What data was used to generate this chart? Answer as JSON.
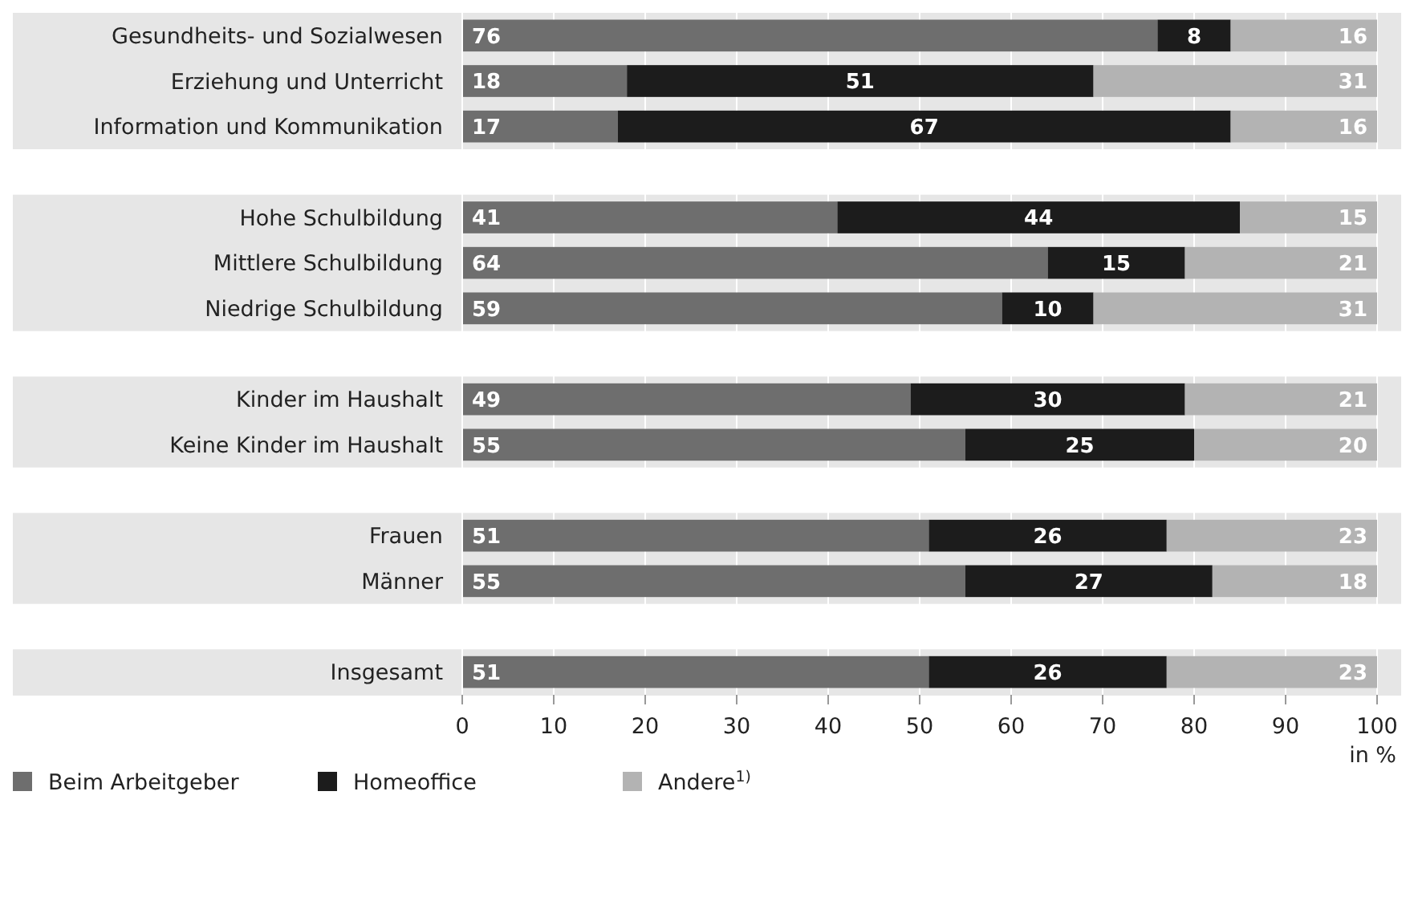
{
  "chart_data": {
    "type": "bar",
    "orientation": "horizontal",
    "stacked": true,
    "data_labels": true,
    "grid": "x",
    "legend": "bottom left",
    "xlabel": "in %",
    "categories": [
      "Gesundheits- und Sozialwesen",
      "Erziehung und Unterricht",
      "Information und Kommunikation",
      null,
      "Hohe Schulbildung",
      "Mittlere Schulbildung",
      "Niedrige Schulbildung",
      null,
      "Kinder im Haushalt",
      "Keine Kinder im Haushalt",
      null,
      "Frauen",
      "Männer",
      null,
      "Insgesamt"
    ],
    "series": [
      {
        "name": "Beim Arbeitgeber",
        "color": "#6e6e6e",
        "values": [
          76,
          18,
          17,
          null,
          41,
          64,
          59,
          null,
          49,
          55,
          null,
          51,
          55,
          null,
          51
        ]
      },
      {
        "name": "Homeoffice",
        "color": "#1c1c1c",
        "values": [
          8,
          51,
          67,
          null,
          44,
          15,
          10,
          null,
          30,
          25,
          null,
          26,
          27,
          null,
          26
        ]
      },
      {
        "name": "Andere$^{1)}$",
        "color": "#b3b3b3",
        "values": [
          16,
          31,
          16,
          null,
          15,
          21,
          31,
          null,
          21,
          20,
          null,
          23,
          18,
          null,
          23
        ]
      }
    ],
    "xlim": [
      0,
      100
    ],
    "xticks": [
      0,
      10,
      20,
      30,
      40,
      50,
      60,
      70,
      80,
      90,
      100
    ]
  }
}
